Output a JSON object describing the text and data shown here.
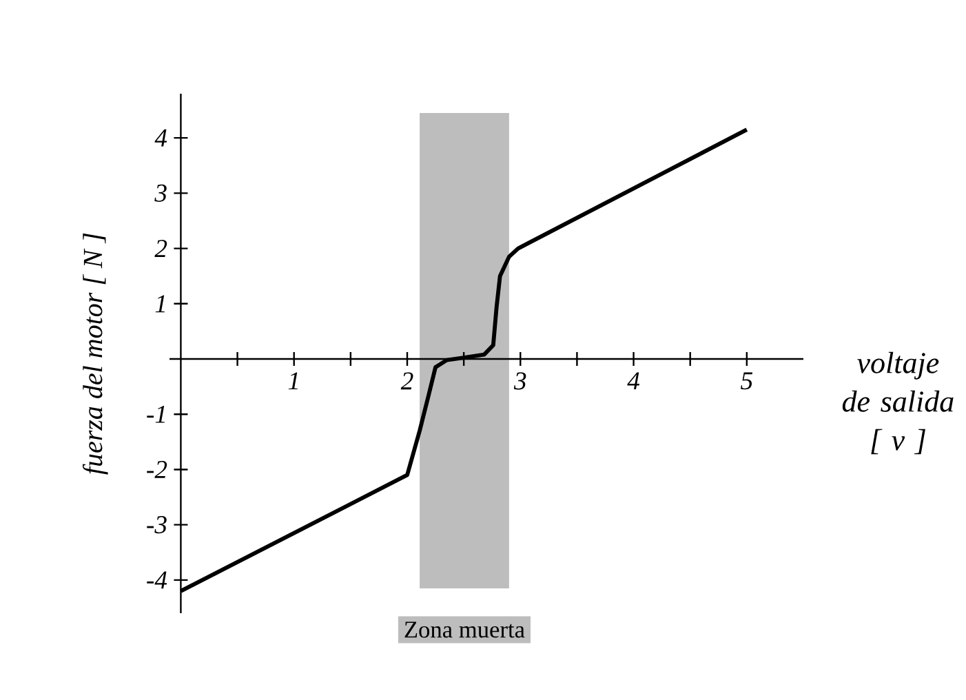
{
  "chart_data": {
    "type": "line",
    "xlabel": "voltaje de salida [ v ]",
    "ylabel": "fuerza del motor  [ N ]",
    "x": [
      0,
      2.0,
      2.11,
      2.19,
      2.25,
      2.35,
      2.49,
      2.68,
      2.76,
      2.79,
      2.82,
      2.9,
      2.98,
      5.0
    ],
    "series": [
      {
        "color": "#000000",
        "values": [
          -4.2,
          -2.1,
          -1.3,
          -0.65,
          -0.15,
          -0.02,
          0.02,
          0.08,
          0.25,
          0.95,
          1.5,
          1.85,
          2.0,
          4.15
        ]
      }
    ],
    "xlim": [
      -0.1,
      5.5
    ],
    "ylim": [
      -4.6,
      4.8
    ],
    "xticks": [
      {
        "value": 0.5,
        "label": null
      },
      1,
      {
        "value": 1.5,
        "label": null
      },
      2,
      {
        "value": 2.5,
        "label": null
      },
      3,
      {
        "value": 3.5,
        "label": null
      },
      4,
      {
        "value": 4.5,
        "label": null
      },
      5
    ],
    "yticks": [
      -4,
      -3,
      -2,
      -1,
      1,
      2,
      3,
      4
    ],
    "bands": [
      {
        "axis": "x",
        "from": 2.11,
        "to": 2.9,
        "label": "Zona muerta",
        "color": "#bdbdbd"
      }
    ]
  }
}
